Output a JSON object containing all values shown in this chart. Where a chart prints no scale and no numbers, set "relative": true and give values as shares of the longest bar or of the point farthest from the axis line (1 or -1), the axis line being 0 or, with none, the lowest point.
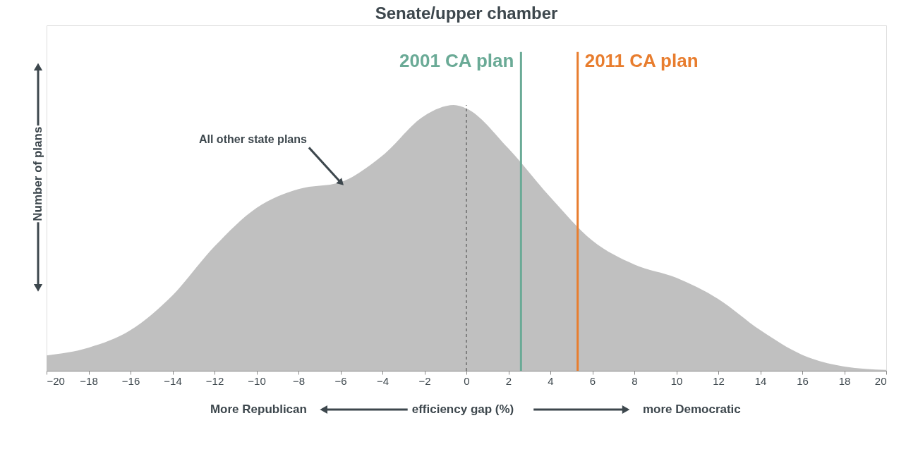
{
  "chart_data": {
    "type": "area",
    "title": "Senate/upper chamber",
    "xlabel": "efficiency gap (%)",
    "ylabel": "Number of plans",
    "relative": true,
    "x": [
      -20,
      -18,
      -16,
      -14,
      -12,
      -10,
      -8,
      -6,
      -4,
      -2,
      -0.6,
      0,
      2,
      4,
      6,
      8,
      10,
      12,
      14,
      16,
      18,
      20
    ],
    "series": [
      {
        "color": "#c0c0c0",
        "values": [
          0.058,
          0.087,
          0.153,
          0.284,
          0.468,
          0.613,
          0.684,
          0.71,
          0.81,
          0.96,
          1,
          0.987,
          0.837,
          0.653,
          0.49,
          0.4,
          0.35,
          0.27,
          0.153,
          0.06,
          0.016,
          0.003
        ]
      }
    ],
    "xlim": [
      -20,
      20
    ],
    "xticks": [
      -20,
      -18,
      -16,
      -14,
      -12,
      -10,
      -8,
      -6,
      -4,
      -2,
      0,
      2,
      4,
      6,
      8,
      10,
      12,
      14,
      16,
      18,
      20
    ],
    "grid": false,
    "ref_lines": [
      {
        "axis": "x",
        "value": 0,
        "color": "#555555",
        "line_style": "dashed"
      },
      {
        "axis": "x",
        "value": 2.6,
        "label": "2001 CA plan",
        "color": "#6aaa96",
        "line_style": "solid"
      },
      {
        "axis": "x",
        "value": 5.3,
        "label": "2011 CA plan",
        "color": "#e87d2e",
        "line_style": "solid"
      }
    ],
    "annotations": [
      {
        "text": "All other state plans",
        "x": -6,
        "y": 0.71
      },
      "More Republican",
      "more Democratic"
    ]
  }
}
